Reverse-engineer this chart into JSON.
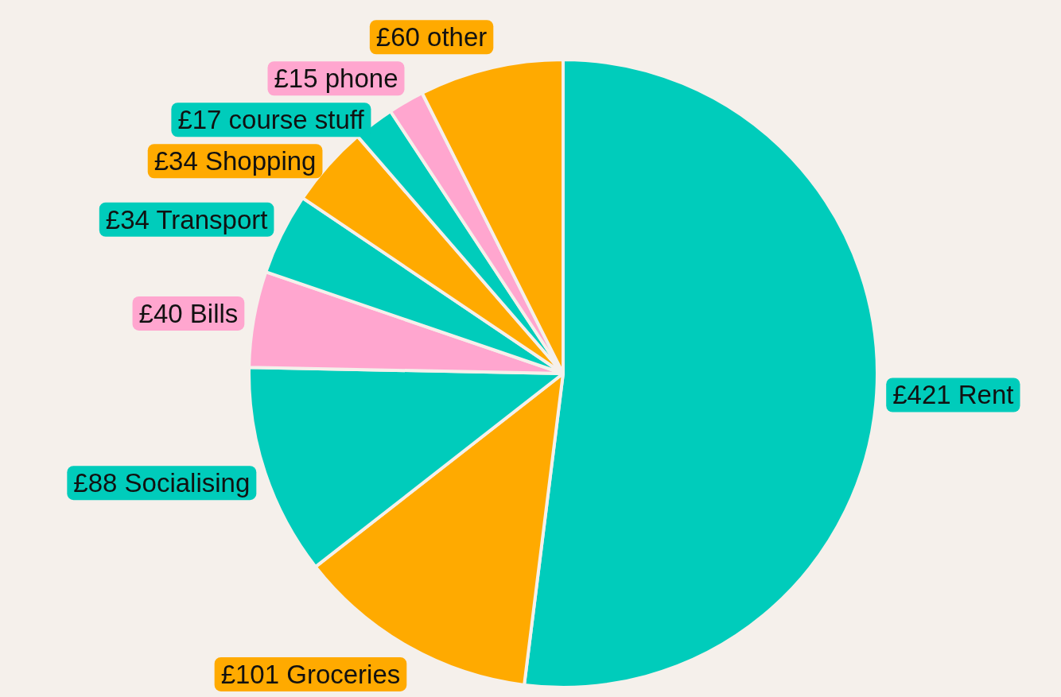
{
  "chart_data": {
    "type": "pie",
    "categories": [
      "Rent",
      "Groceries",
      "Socialising",
      "Bills",
      "Transport",
      "Shopping",
      "course stuff",
      "phone",
      "other"
    ],
    "values": [
      421,
      101,
      88,
      40,
      34,
      34,
      17,
      15,
      60
    ],
    "value_labels": [
      "£421",
      "£101",
      "£88",
      "£40",
      "£34",
      "£34",
      "£17",
      "£15",
      "£60"
    ],
    "colors": [
      "#00ccbb",
      "#ffaa00",
      "#00ccbb",
      "#ffa6cf",
      "#00ccbb",
      "#ffaa00",
      "#00ccbb",
      "#ffa6cf",
      "#ffaa00"
    ]
  }
}
